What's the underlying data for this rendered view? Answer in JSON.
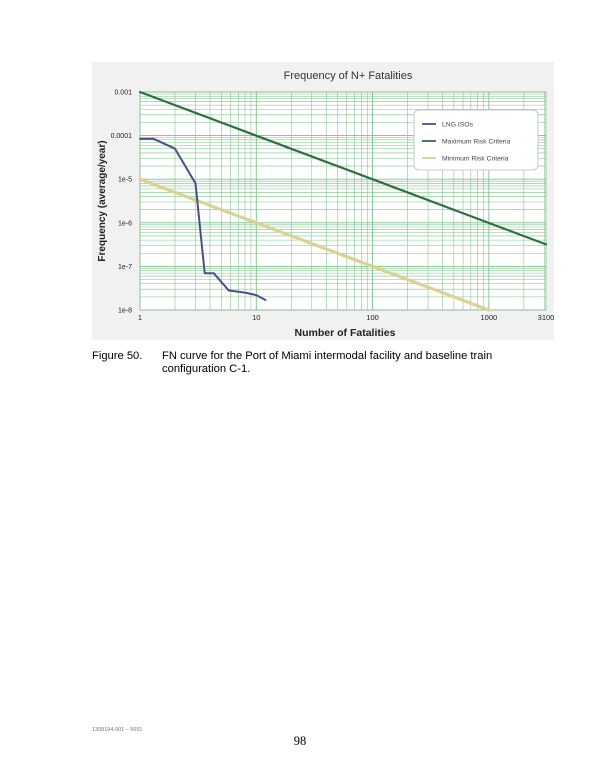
{
  "chart_data": {
    "type": "line",
    "title": "Frequency of N+ Fatalities",
    "xlabel": "Number of Fatalities",
    "ylabel": "Frequency (average/year)",
    "x_scale": "log",
    "y_scale": "log",
    "xlim": [
      1,
      3100
    ],
    "ylim": [
      1e-08,
      0.001
    ],
    "x_tick_labels": [
      "1",
      "10",
      "100",
      "1000",
      "3100"
    ],
    "x_tick_values": [
      1,
      10,
      100,
      1000,
      3100
    ],
    "y_tick_labels": [
      "1e-8",
      "1e-7",
      "1e-6",
      "1e-5",
      "0.0001",
      "0.001"
    ],
    "y_tick_values": [
      1e-08,
      1e-07,
      1e-06,
      1e-05,
      0.0001,
      0.001
    ],
    "grid": true,
    "legend_position": "top-right",
    "series": [
      {
        "name": "LNG ISOs",
        "color": "#4a4f86",
        "x": [
          1,
          1.3,
          2,
          3,
          3.6,
          4.3,
          5.8,
          8,
          10,
          12
        ],
        "y": [
          8.5e-05,
          8.5e-05,
          5e-05,
          8e-06,
          7e-08,
          7e-08,
          2.8e-08,
          2.5e-08,
          2.2e-08,
          1.7e-08
        ]
      },
      {
        "name": "Maximum Risk Criteria",
        "color": "#2f6f3f",
        "x": [
          1,
          3100
        ],
        "y": [
          0.001,
          3.2e-07
        ]
      },
      {
        "name": "Minimum Risk Criteria",
        "color": "#d9d292",
        "x": [
          1,
          1000
        ],
        "y": [
          1e-05,
          1e-08
        ]
      }
    ]
  },
  "caption": {
    "number": "Figure 50.",
    "text": "FN curve for the Port of Miami intermodal facility and baseline train configuration C-1."
  },
  "footer": {
    "doc_id": "1308194.001 – 5691",
    "page_number": "98"
  }
}
